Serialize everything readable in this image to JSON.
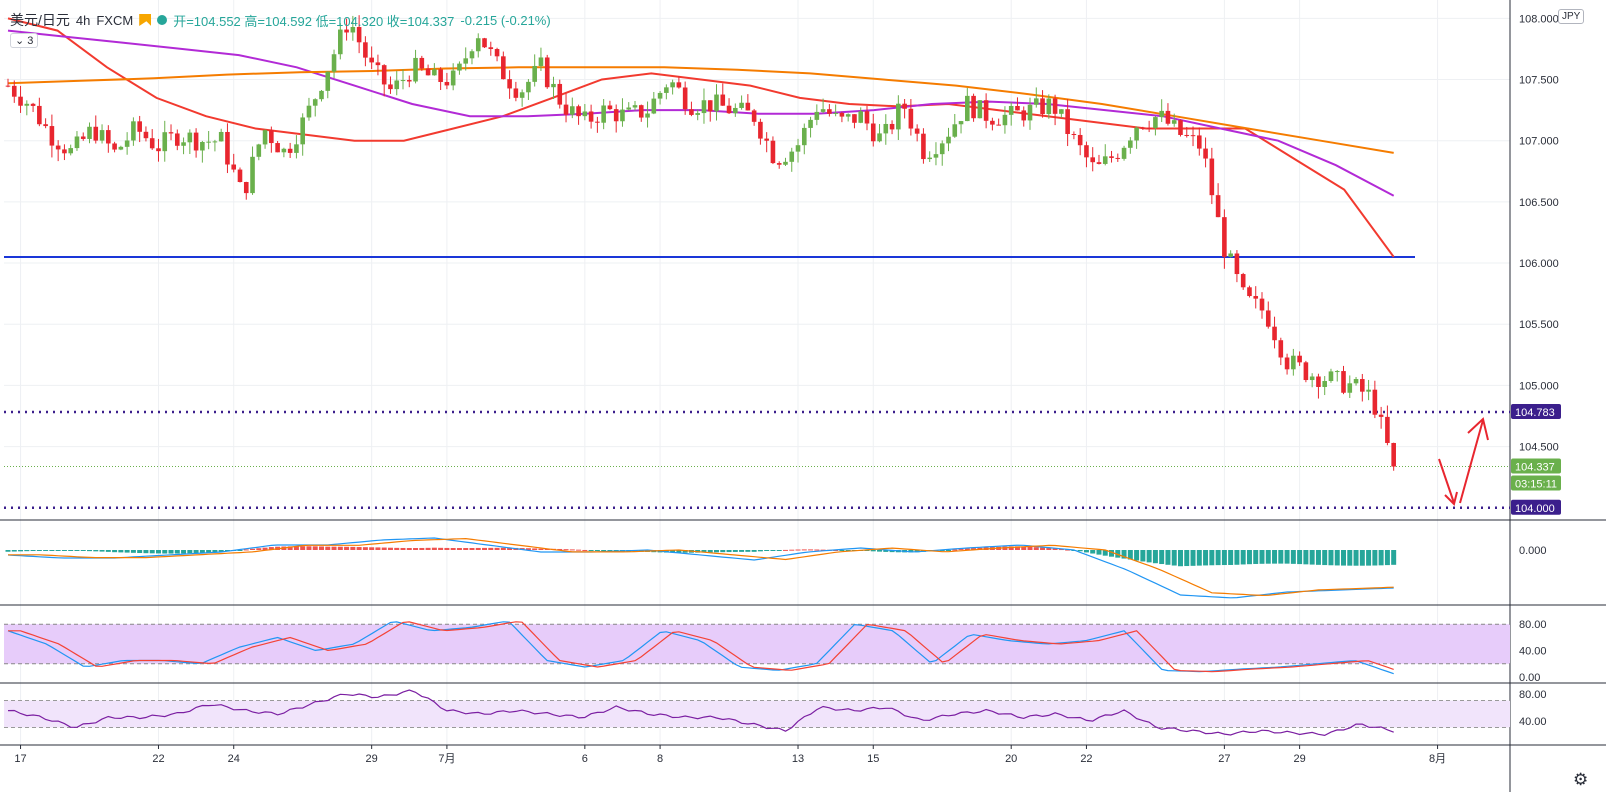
{
  "header": {
    "symbol": "美元/日元",
    "interval": "4h",
    "exchange": "FXCM",
    "ohlc_text": "开=104.552  高=104.592  低=104.320  收=104.337",
    "change_text": "-0.215 (-0.21%)",
    "studies_count": "3",
    "currency": "JPY"
  },
  "colors": {
    "up": "#6ab04c",
    "down": "#e8262f",
    "ma_red": "#f23a2f",
    "ma_purple": "#b22ad6",
    "ma_orange": "#f57c00",
    "support_line": "#1a36d8",
    "dotted_level": "#3b1f8c",
    "macd_pos": "#ef5350",
    "macd_neg": "#26a69a",
    "stoch_k": "#2196f3",
    "stoch_d": "#f44336",
    "rsi": "#7b1fa2",
    "band_fill": "#e7ccfa"
  },
  "chart_data": [
    {
      "type": "line",
      "panel": "price",
      "ylim": [
        103.9,
        108.15
      ],
      "ytick_labels": [
        "108.000",
        "107.500",
        "107.000",
        "106.500",
        "106.000",
        "105.500",
        "105.000",
        "104.500"
      ],
      "yticks": [
        108.0,
        107.5,
        107.0,
        106.5,
        106.0,
        105.5,
        105.0,
        104.5
      ],
      "xtick_labels": [
        "17",
        "22",
        "24",
        "29",
        "7月",
        "6",
        "8",
        "13",
        "15",
        "20",
        "22",
        "27",
        "29",
        "8月"
      ],
      "xtick_index": [
        2,
        24,
        36,
        58,
        70,
        92,
        104,
        126,
        138,
        160,
        172,
        194,
        206,
        228
      ],
      "candles_count": 222,
      "price_path": [
        107.45,
        107.3,
        107.05,
        106.9,
        107.1,
        106.9,
        107.1,
        106.95,
        107.05,
        107.0,
        107.0,
        106.55,
        107.1,
        106.9,
        107.2,
        107.6,
        108.0,
        107.6,
        107.4,
        107.6,
        107.5,
        107.5,
        107.9,
        107.6,
        107.4,
        107.6,
        107.3,
        107.15,
        107.25,
        107.2,
        107.25,
        107.5,
        107.3,
        107.3,
        107.25,
        107.2,
        106.85,
        106.95,
        107.3,
        107.15,
        107.2,
        107.0,
        107.3,
        106.9,
        107.05,
        107.3,
        107.2,
        107.2,
        107.25,
        107.3,
        107.0,
        106.75,
        106.9,
        107.15,
        107.2,
        107.05,
        106.95,
        106.15,
        105.7,
        105.6,
        105.2,
        105.1,
        105.05,
        105.0,
        104.9,
        104.33
      ],
      "current_price": 104.337,
      "levels": {
        "support_line": 106.05,
        "top_line": 108.2,
        "dotted_upper": 104.783,
        "dotted_lower": 104.0
      },
      "price_labels": {
        "upper": "104.783",
        "current": "104.337",
        "countdown": "03:15:11",
        "lower": "104.000"
      },
      "moving_averages": [
        {
          "color_key": "ma_red",
          "values": [
            108.0,
            107.9,
            107.6,
            107.35,
            107.2,
            107.1,
            107.05,
            107.0,
            107.0,
            107.1,
            107.2,
            107.35,
            107.5,
            107.55,
            107.5,
            107.45,
            107.35,
            107.3,
            107.28,
            107.3,
            107.25,
            107.2,
            107.15,
            107.1,
            107.1,
            107.1,
            106.85,
            106.6,
            106.05
          ]
        },
        {
          "color_key": "ma_purple",
          "values": [
            107.9,
            107.85,
            107.8,
            107.75,
            107.7,
            107.6,
            107.45,
            107.3,
            107.2,
            107.2,
            107.22,
            107.25,
            107.25,
            107.22,
            107.22,
            107.25,
            107.3,
            107.32,
            107.3,
            107.25,
            107.2,
            107.1,
            107.0,
            106.8,
            106.55
          ]
        },
        {
          "color_key": "ma_orange",
          "values": [
            107.47,
            107.49,
            107.51,
            107.54,
            107.56,
            107.57,
            107.59,
            107.6,
            107.6,
            107.6,
            107.58,
            107.55,
            107.5,
            107.45,
            107.38,
            107.3,
            107.2,
            107.1,
            107.0,
            106.9
          ]
        }
      ],
      "annotation_arrows": "down-then-up"
    },
    {
      "type": "bar",
      "panel": "macd",
      "ytick_labels": [
        "0.000"
      ],
      "ylim": [
        -0.55,
        0.3
      ]
    },
    {
      "type": "line",
      "panel": "stochastic",
      "ylim": [
        0,
        100
      ],
      "ytick_labels": [
        "80.00",
        "40.00",
        "0.00"
      ],
      "yticks": [
        80,
        40,
        0
      ],
      "band": [
        20,
        80
      ]
    },
    {
      "type": "line",
      "panel": "rsi",
      "ylim": [
        10,
        90
      ],
      "ytick_labels": [
        "80.00",
        "40.00"
      ],
      "yticks": [
        80,
        40
      ],
      "band": [
        30,
        70
      ]
    }
  ]
}
